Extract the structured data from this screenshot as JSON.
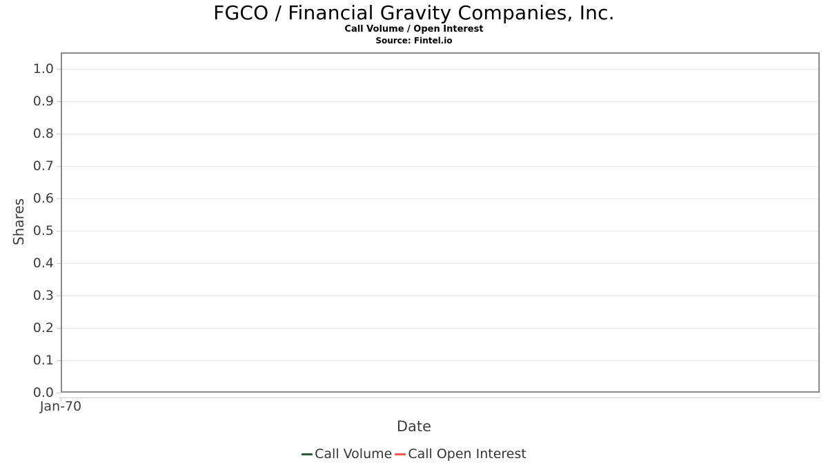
{
  "chart_data": {
    "type": "line",
    "title": "FGCO / Financial Gravity Companies, Inc.",
    "subtitle": "Call Volume / Open Interest",
    "source": "Source: Fintel.io",
    "xlabel": "Date",
    "ylabel": "Shares",
    "x_tick_labels": [
      "Jan-70"
    ],
    "y_tick_labels": [
      "1.0",
      "0.9",
      "0.8",
      "0.7",
      "0.6",
      "0.5",
      "0.4",
      "0.3",
      "0.2",
      "0.1",
      "0.0"
    ],
    "ylim": [
      0,
      1.05
    ],
    "grid": "horizontal-only",
    "legend_position": "bottom-center",
    "series": [
      {
        "name": "Call Volume",
        "color": "#2b5a38",
        "x": [],
        "values": []
      },
      {
        "name": "Call Open Interest",
        "color": "#f4564f",
        "x": [],
        "values": []
      }
    ],
    "colors": {
      "plot_border": "#8a8a8a",
      "gridline": "#e8e8e8",
      "tick": "#c9c9c9",
      "axis_line": "#cfcfcf",
      "title_text": "#000000",
      "axis_text": "#3d3d3d",
      "legend_text": "#333333"
    }
  }
}
